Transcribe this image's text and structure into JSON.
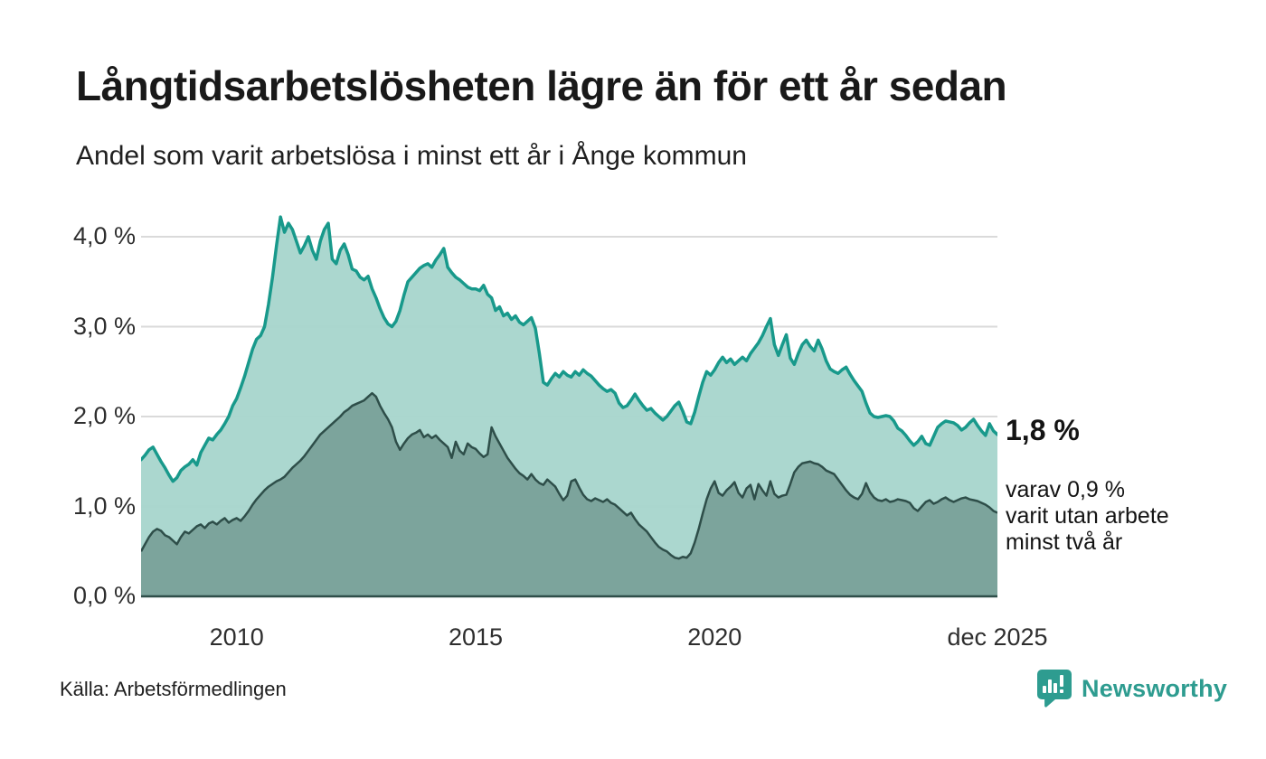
{
  "header": {
    "title": "Långtidsarbetslösheten lägre än för ett år sedan",
    "subtitle": "Andel som varit arbetslösa i minst ett år i Ånge kommun"
  },
  "annotations": {
    "latest_value": "1,8 %",
    "secondary": [
      "varav 0,9 %",
      "varit utan arbete",
      "minst två år"
    ]
  },
  "source": "Källa: Arbetsförmedlingen",
  "branding": {
    "logo_text": "Newsworthy",
    "logo_icon": "bar-chart-speech-bubble-icon",
    "color": "#2e9c90"
  },
  "colors": {
    "series1_line": "#18998b",
    "series1_fill": "#a8d5cd",
    "series2_line": "#2e4e49",
    "series2_fill": "#7aa29a",
    "gridline": "#dadada",
    "baseline": "#2e4e49",
    "text": "#191919"
  },
  "chart_data": {
    "type": "area",
    "unit": "percent",
    "x_start": "2008-01",
    "x_end": "2025-12",
    "interval": "monthly",
    "grid": true,
    "legend_position": "none",
    "ylim": [
      0,
      4.35
    ],
    "y_ticks": [
      {
        "label": "4,0 %",
        "value": 4.0
      },
      {
        "label": "3,0 %",
        "value": 3.0
      },
      {
        "label": "2,0 %",
        "value": 2.0
      },
      {
        "label": "1,0 %",
        "value": 1.0
      },
      {
        "label": "0,0 %",
        "value": 0.0
      }
    ],
    "x_ticks": [
      {
        "label": "2010",
        "month": 24
      },
      {
        "label": "2015",
        "month": 84
      },
      {
        "label": "2020",
        "month": 144
      },
      {
        "label": "dec 2025",
        "month": 215
      }
    ],
    "series": [
      {
        "name": "Arbetslösa minst ett år",
        "latest_label": "1,8 %",
        "values": [
          1.52,
          1.57,
          1.63,
          1.66,
          1.58,
          1.5,
          1.43,
          1.35,
          1.28,
          1.32,
          1.4,
          1.44,
          1.47,
          1.52,
          1.46,
          1.6,
          1.68,
          1.76,
          1.74,
          1.8,
          1.85,
          1.92,
          2.0,
          2.12,
          2.2,
          2.32,
          2.45,
          2.6,
          2.75,
          2.86,
          2.9,
          3.0,
          3.25,
          3.55,
          3.9,
          4.22,
          4.05,
          4.15,
          4.08,
          3.95,
          3.82,
          3.9,
          4.0,
          3.85,
          3.75,
          3.95,
          4.08,
          4.15,
          3.75,
          3.7,
          3.85,
          3.92,
          3.8,
          3.64,
          3.62,
          3.55,
          3.52,
          3.56,
          3.42,
          3.32,
          3.2,
          3.1,
          3.03,
          3.0,
          3.06,
          3.18,
          3.35,
          3.5,
          3.55,
          3.6,
          3.65,
          3.68,
          3.7,
          3.66,
          3.74,
          3.8,
          3.87,
          3.66,
          3.6,
          3.55,
          3.52,
          3.48,
          3.44,
          3.42,
          3.42,
          3.4,
          3.46,
          3.36,
          3.32,
          3.18,
          3.22,
          3.12,
          3.15,
          3.08,
          3.12,
          3.05,
          3.02,
          3.06,
          3.1,
          2.98,
          2.7,
          2.38,
          2.35,
          2.42,
          2.48,
          2.44,
          2.5,
          2.46,
          2.44,
          2.5,
          2.46,
          2.52,
          2.48,
          2.45,
          2.4,
          2.35,
          2.31,
          2.28,
          2.3,
          2.26,
          2.15,
          2.1,
          2.12,
          2.18,
          2.25,
          2.18,
          2.12,
          2.07,
          2.09,
          2.04,
          2.0,
          1.96,
          2.0,
          2.06,
          2.12,
          2.16,
          2.06,
          1.94,
          1.92,
          2.05,
          2.22,
          2.38,
          2.5,
          2.46,
          2.52,
          2.6,
          2.66,
          2.6,
          2.64,
          2.58,
          2.62,
          2.66,
          2.62,
          2.7,
          2.76,
          2.82,
          2.9,
          3.0,
          3.09,
          2.8,
          2.68,
          2.8,
          2.91,
          2.65,
          2.58,
          2.7,
          2.8,
          2.85,
          2.78,
          2.73,
          2.85,
          2.75,
          2.62,
          2.53,
          2.5,
          2.48,
          2.52,
          2.55,
          2.47,
          2.4,
          2.34,
          2.28,
          2.15,
          2.04,
          2.0,
          1.99,
          2.0,
          2.01,
          2.0,
          1.95,
          1.87,
          1.84,
          1.79,
          1.73,
          1.68,
          1.72,
          1.78,
          1.7,
          1.68,
          1.78,
          1.88,
          1.92,
          1.95,
          1.94,
          1.93,
          1.9,
          1.85,
          1.88,
          1.93,
          1.97,
          1.9,
          1.84,
          1.79,
          1.92,
          1.84,
          1.8
        ]
      },
      {
        "name": "varav utan arbete minst två år",
        "latest_label": "0,9 %",
        "values": [
          0.5,
          0.58,
          0.66,
          0.72,
          0.75,
          0.73,
          0.68,
          0.66,
          0.62,
          0.58,
          0.66,
          0.72,
          0.7,
          0.74,
          0.78,
          0.8,
          0.76,
          0.81,
          0.83,
          0.8,
          0.84,
          0.87,
          0.82,
          0.85,
          0.87,
          0.84,
          0.89,
          0.95,
          1.02,
          1.08,
          1.13,
          1.18,
          1.22,
          1.25,
          1.28,
          1.3,
          1.33,
          1.38,
          1.43,
          1.47,
          1.51,
          1.56,
          1.62,
          1.68,
          1.74,
          1.8,
          1.84,
          1.88,
          1.92,
          1.96,
          2.0,
          2.05,
          2.08,
          2.12,
          2.14,
          2.16,
          2.18,
          2.22,
          2.26,
          2.22,
          2.12,
          2.04,
          1.97,
          1.88,
          1.72,
          1.63,
          1.7,
          1.76,
          1.8,
          1.82,
          1.85,
          1.77,
          1.8,
          1.76,
          1.79,
          1.74,
          1.7,
          1.66,
          1.54,
          1.72,
          1.62,
          1.58,
          1.7,
          1.66,
          1.64,
          1.59,
          1.55,
          1.58,
          1.88,
          1.78,
          1.7,
          1.62,
          1.54,
          1.48,
          1.42,
          1.37,
          1.34,
          1.3,
          1.36,
          1.3,
          1.26,
          1.24,
          1.3,
          1.26,
          1.22,
          1.14,
          1.07,
          1.12,
          1.28,
          1.3,
          1.21,
          1.13,
          1.08,
          1.06,
          1.09,
          1.07,
          1.05,
          1.08,
          1.04,
          1.02,
          0.98,
          0.94,
          0.9,
          0.93,
          0.86,
          0.8,
          0.76,
          0.72,
          0.66,
          0.6,
          0.55,
          0.52,
          0.5,
          0.46,
          0.43,
          0.42,
          0.44,
          0.43,
          0.48,
          0.6,
          0.75,
          0.92,
          1.08,
          1.2,
          1.28,
          1.15,
          1.12,
          1.18,
          1.22,
          1.27,
          1.15,
          1.1,
          1.2,
          1.24,
          1.08,
          1.25,
          1.18,
          1.12,
          1.28,
          1.14,
          1.1,
          1.12,
          1.13,
          1.25,
          1.38,
          1.44,
          1.48,
          1.49,
          1.5,
          1.48,
          1.47,
          1.44,
          1.4,
          1.38,
          1.36,
          1.3,
          1.24,
          1.18,
          1.13,
          1.1,
          1.08,
          1.14,
          1.26,
          1.16,
          1.1,
          1.07,
          1.06,
          1.08,
          1.05,
          1.06,
          1.08,
          1.07,
          1.06,
          1.04,
          0.98,
          0.95,
          1.0,
          1.05,
          1.07,
          1.03,
          1.05,
          1.08,
          1.1,
          1.07,
          1.05,
          1.07,
          1.09,
          1.1,
          1.08,
          1.07,
          1.06,
          1.04,
          1.02,
          0.99,
          0.95,
          0.93
        ]
      }
    ]
  }
}
